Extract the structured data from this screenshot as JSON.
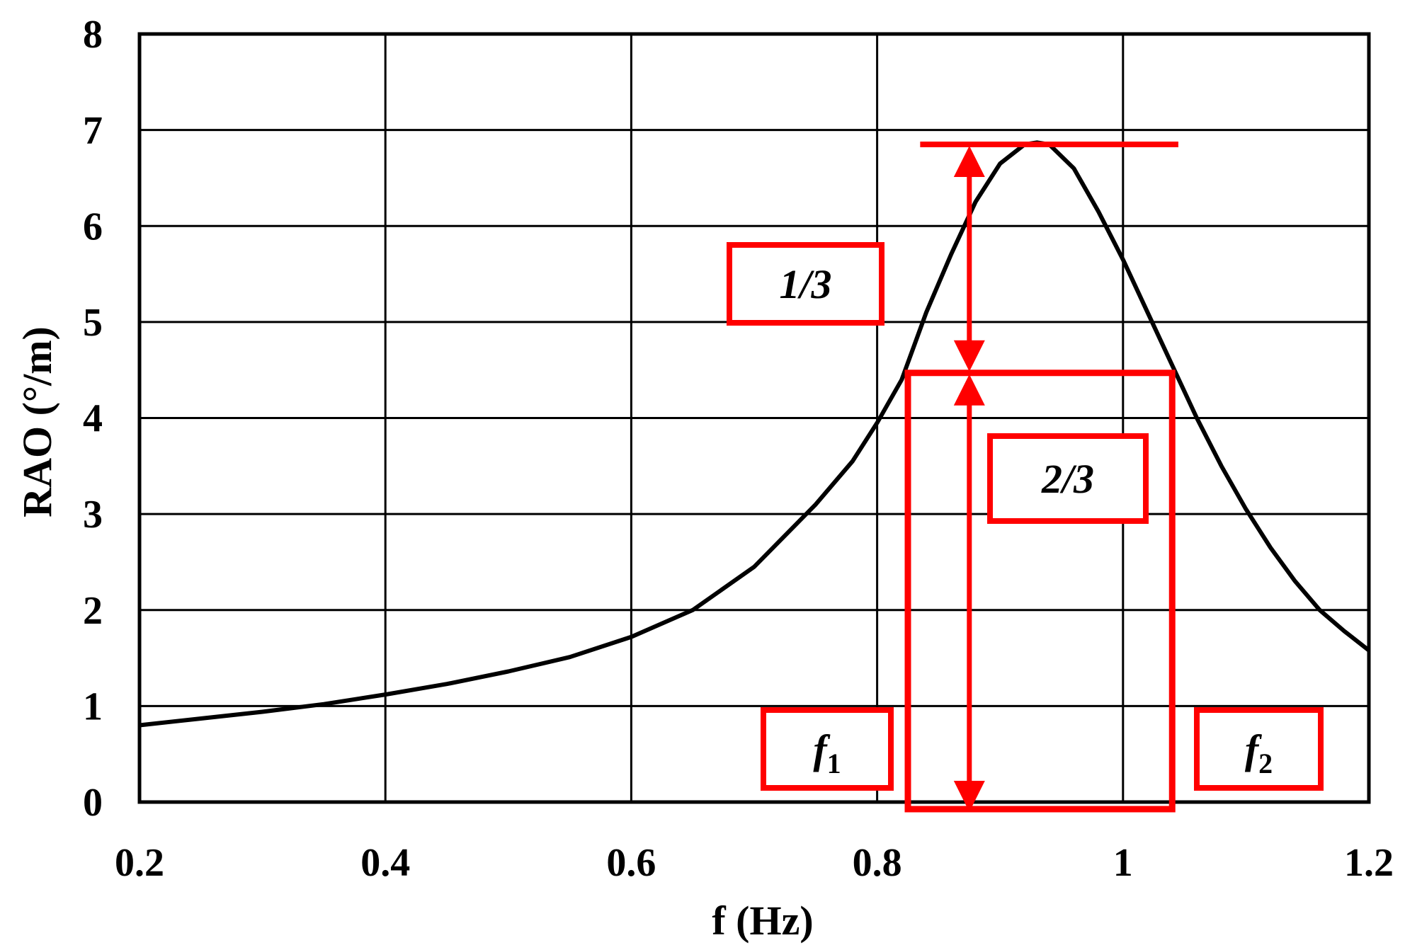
{
  "chart_data": {
    "type": "line",
    "xlabel": "f (Hz)",
    "ylabel": "RAO (°/m)",
    "xlim": [
      0.2,
      1.2
    ],
    "ylim": [
      0,
      8
    ],
    "x_ticks": [
      "0.2",
      "0.4",
      "0.6",
      "0.8",
      "1",
      "1.2"
    ],
    "y_ticks": [
      "0",
      "1",
      "2",
      "3",
      "4",
      "5",
      "6",
      "7",
      "8"
    ],
    "grid": true,
    "series": [
      {
        "color": "#000000",
        "x": [
          0.2,
          0.25,
          0.3,
          0.35,
          0.4,
          0.45,
          0.5,
          0.55,
          0.6,
          0.65,
          0.7,
          0.75,
          0.78,
          0.8,
          0.82,
          0.84,
          0.86,
          0.88,
          0.9,
          0.92,
          0.93,
          0.94,
          0.96,
          0.98,
          1.0,
          1.02,
          1.04,
          1.06,
          1.08,
          1.1,
          1.12,
          1.14,
          1.16,
          1.18,
          1.2
        ],
        "y": [
          0.8,
          0.87,
          0.94,
          1.02,
          1.12,
          1.23,
          1.36,
          1.51,
          1.72,
          2.0,
          2.45,
          3.1,
          3.55,
          3.95,
          4.4,
          5.1,
          5.7,
          6.25,
          6.65,
          6.85,
          6.87,
          6.85,
          6.6,
          6.15,
          5.65,
          5.1,
          4.55,
          4.0,
          3.5,
          3.05,
          2.65,
          2.3,
          2.0,
          1.78,
          1.58
        ]
      }
    ],
    "annotations": {
      "color": "#ff0000",
      "peak_value": 6.85,
      "peak_line_x": [
        0.835,
        1.045
      ],
      "arrow_x": 0.875,
      "two_thirds_level": 4.47,
      "band_rect": {
        "x0": 0.825,
        "x1": 1.04,
        "y0": 0,
        "y1": 4.47
      },
      "label_one_third": "1/3",
      "label_two_thirds": "2/3",
      "f1_label": {
        "main": "f",
        "sub": "1"
      },
      "f2_label": {
        "main": "f",
        "sub": "2"
      }
    }
  }
}
